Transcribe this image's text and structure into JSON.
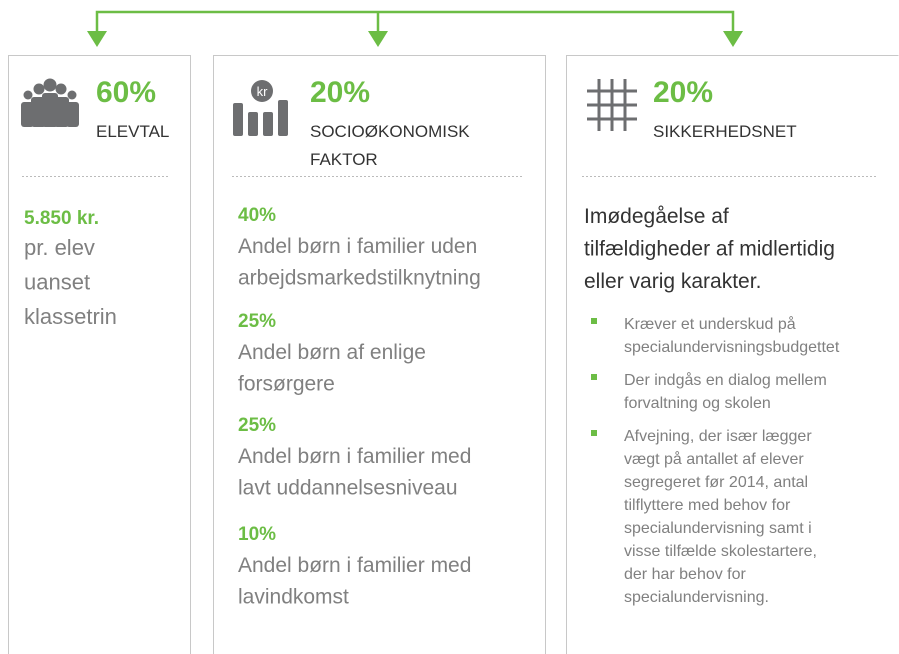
{
  "columns": [
    {
      "percent": "60%",
      "title": [
        "ELEVTAL"
      ],
      "amount": "5.850 kr.",
      "description": [
        "pr. elev",
        "uanset",
        "klassetrin"
      ]
    },
    {
      "percent": "20%",
      "title": [
        "SOCIOØKONOMISK",
        "FAKTOR"
      ],
      "icon_label": "kr",
      "items": [
        {
          "percent": "40%",
          "text": [
            "Andel børn i familier uden",
            "arbejdsmarkedstilknytning"
          ]
        },
        {
          "percent": "25%",
          "text": [
            "Andel børn af enlige",
            "forsørgere"
          ]
        },
        {
          "percent": "25%",
          "text": [
            "Andel børn i familier med",
            "lavt uddannelsesniveau"
          ]
        },
        {
          "percent": "10%",
          "text": [
            "Andel børn i familier med",
            "lavindkomst"
          ]
        }
      ]
    },
    {
      "percent": "20%",
      "title": [
        "SIKKERHEDSNET"
      ],
      "description": [
        "Imødegåelse af",
        "tilfældigheder af midlertidig",
        "eller varig karakter."
      ],
      "bullets": [
        [
          "Kræver et underskud på",
          "specialundervisningsbudgettet"
        ],
        [
          "Der indgås en dialog mellem",
          "forvaltning og skolen"
        ],
        [
          "Afvejning, der især lægger",
          "vægt på antallet af elever",
          "segregeret før 2014, antal",
          "tilflyttere med behov for",
          "specialundervisning samt i",
          "visse tilfælde skolestartere,",
          "der har behov for",
          "specialundervisning."
        ]
      ]
    }
  ]
}
